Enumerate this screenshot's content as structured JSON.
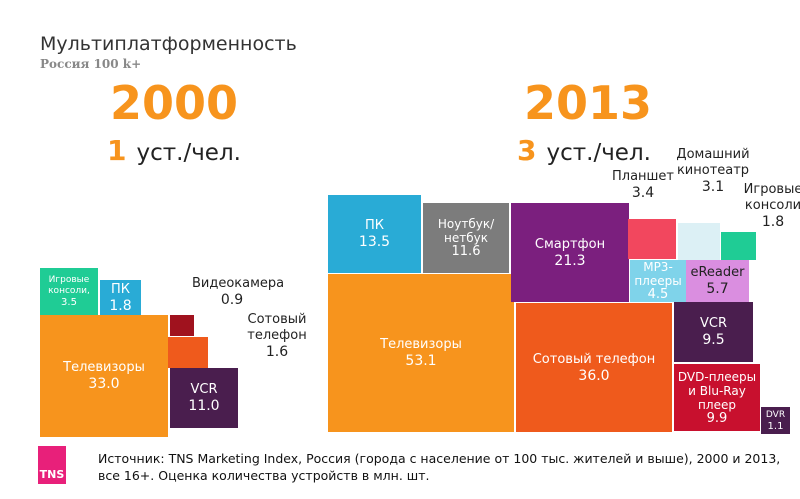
{
  "title": "Мультиплатформенность",
  "subtitle": "Россия 100 k+",
  "panels": [
    {
      "year": "2000",
      "devices_per_person": "1",
      "unit": "уст./чел."
    },
    {
      "year": "2013",
      "devices_per_person": "3",
      "unit": "уст./чел."
    }
  ],
  "chart_data": [
    {
      "type": "treemap",
      "year": "2000",
      "series": [
        {
          "name": "Телевизоры",
          "value": 33.0,
          "color": "#f7941d"
        },
        {
          "name": "VCR",
          "value": 11.0,
          "color": "#4a1e4e"
        },
        {
          "name": "Игровые консоли,",
          "value": 3.5,
          "color": "#1fcc95"
        },
        {
          "name": "ПК",
          "value": 1.8,
          "color": "#29abd6"
        },
        {
          "name": "Сотовый телефон",
          "value": 1.6,
          "color": "#ef5a1c"
        },
        {
          "name": "Видеокамера",
          "value": 0.9,
          "color": "#a0121e"
        }
      ]
    },
    {
      "type": "treemap",
      "year": "2013",
      "series": [
        {
          "name": "Телевизоры",
          "value": 53.1,
          "color": "#f7941d"
        },
        {
          "name": "Сотовый телефон",
          "value": 36.0,
          "color": "#ef5a1c"
        },
        {
          "name": "Смартфон",
          "value": 21.3,
          "color": "#7b1f7e"
        },
        {
          "name": "ПК",
          "value": 13.5,
          "color": "#29abd6"
        },
        {
          "name": "Ноутбук/ нетбук",
          "value": 11.6,
          "color": "#7c7c7c"
        },
        {
          "name": "DVD-плееры и Blu-Ray плеер",
          "value": 9.9,
          "color": "#c8102e"
        },
        {
          "name": "VCR",
          "value": 9.5,
          "color": "#4a1e4e"
        },
        {
          "name": "eReader",
          "value": 5.7,
          "color": "#da8ee0"
        },
        {
          "name": "MP3- плееры",
          "value": 4.5,
          "color": "#7fd3ea"
        },
        {
          "name": "Планшет",
          "value": 3.4,
          "color": "#f2475e"
        },
        {
          "name": "Домашний кинотеатр",
          "value": 3.1,
          "color": "#dcf0f5"
        },
        {
          "name": "Игровые консоли",
          "value": 1.8,
          "color": "#1fcc95"
        },
        {
          "name": "DVR",
          "value": 1.1,
          "color": "#4a1e4e"
        }
      ]
    }
  ],
  "source": {
    "logo": "TNS",
    "text": "Источник: TNS Marketing Index, Россия (города с население от 100 тыс. жителей и выше), 2000 и 2013, все 16+. Оценка количества устройств в млн. шт."
  }
}
